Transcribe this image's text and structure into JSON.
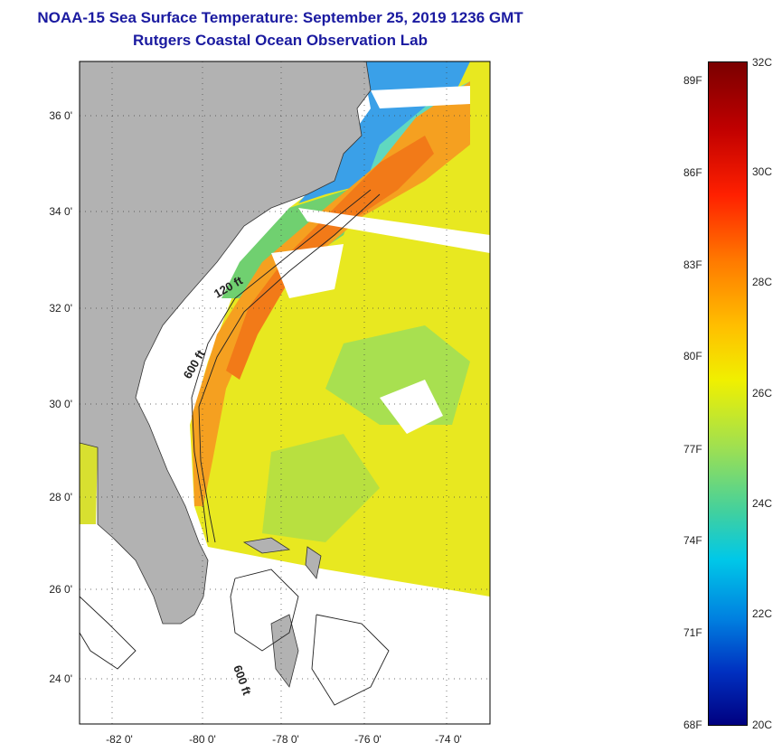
{
  "title": {
    "line1": "NOAA-15 Sea Surface Temperature:  September 25, 2019 1236 GMT",
    "line2": "Rutgers Coastal Ocean Observation Lab"
  },
  "map": {
    "lat_labels": [
      "36 0'",
      "34 0'",
      "32 0'",
      "30 0'",
      "28 0'",
      "26 0'",
      "24 0'"
    ],
    "lon_labels": [
      "-82 0'",
      "-80 0'",
      "-78 0'",
      "-76 0'",
      "-74 0'"
    ],
    "contour_labels": [
      "120 ft",
      "600 ft",
      "600 ft"
    ]
  },
  "colorbar": {
    "fahrenheit": [
      "89F",
      "86F",
      "83F",
      "80F",
      "77F",
      "74F",
      "71F",
      "68F"
    ],
    "celsius": [
      "32C",
      "30C",
      "28C",
      "26C",
      "24C",
      "22C",
      "20C"
    ]
  },
  "colors": {
    "land": "#b2b2b2",
    "title": "#1a1aa0"
  }
}
